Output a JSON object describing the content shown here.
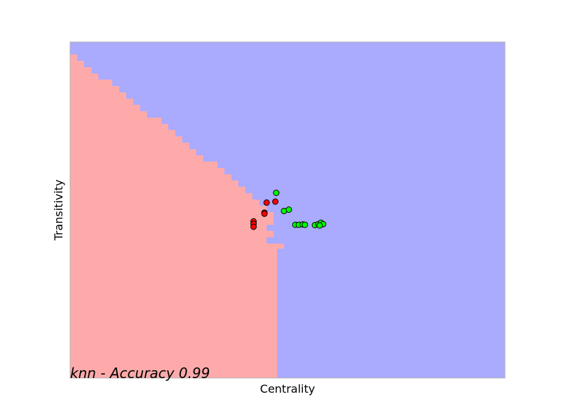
{
  "chart_data": {
    "type": "scatter",
    "title": "",
    "xlabel": "Centrality",
    "ylabel": "Transitivity",
    "xlim": [
      0,
      1
    ],
    "ylim": [
      0,
      1
    ],
    "x_ticks_visible": false,
    "y_ticks_visible": false,
    "grid": false,
    "annotation": "knn - Accuracy 0.99",
    "annotation_placement": "bottom-left",
    "background_regions": {
      "description_type": "decision-boundary",
      "colors": {
        "class_0": "#ffaaaa",
        "class_1": "#aaaaff"
      },
      "class_0_boundary_vertices": [
        [
          0.0,
          0.963
        ],
        [
          0.016,
          0.963
        ],
        [
          0.016,
          0.944
        ],
        [
          0.032,
          0.944
        ],
        [
          0.032,
          0.925
        ],
        [
          0.049,
          0.925
        ],
        [
          0.049,
          0.906
        ],
        [
          0.065,
          0.906
        ],
        [
          0.065,
          0.888
        ],
        [
          0.097,
          0.888
        ],
        [
          0.097,
          0.869
        ],
        [
          0.113,
          0.869
        ],
        [
          0.113,
          0.85
        ],
        [
          0.129,
          0.85
        ],
        [
          0.129,
          0.831
        ],
        [
          0.145,
          0.831
        ],
        [
          0.145,
          0.813
        ],
        [
          0.161,
          0.813
        ],
        [
          0.161,
          0.794
        ],
        [
          0.177,
          0.794
        ],
        [
          0.177,
          0.775
        ],
        [
          0.21,
          0.775
        ],
        [
          0.21,
          0.756
        ],
        [
          0.226,
          0.756
        ],
        [
          0.226,
          0.738
        ],
        [
          0.242,
          0.738
        ],
        [
          0.242,
          0.719
        ],
        [
          0.258,
          0.719
        ],
        [
          0.258,
          0.7
        ],
        [
          0.274,
          0.7
        ],
        [
          0.274,
          0.681
        ],
        [
          0.29,
          0.681
        ],
        [
          0.29,
          0.663
        ],
        [
          0.306,
          0.663
        ],
        [
          0.306,
          0.644
        ],
        [
          0.339,
          0.644
        ],
        [
          0.339,
          0.625
        ],
        [
          0.355,
          0.625
        ],
        [
          0.355,
          0.606
        ],
        [
          0.371,
          0.606
        ],
        [
          0.371,
          0.588
        ],
        [
          0.387,
          0.588
        ],
        [
          0.387,
          0.569
        ],
        [
          0.403,
          0.569
        ],
        [
          0.403,
          0.55
        ],
        [
          0.419,
          0.55
        ],
        [
          0.419,
          0.531
        ],
        [
          0.435,
          0.531
        ],
        [
          0.435,
          0.513
        ],
        [
          0.452,
          0.513
        ],
        [
          0.452,
          0.494
        ],
        [
          0.468,
          0.494
        ],
        [
          0.468,
          0.456
        ],
        [
          0.452,
          0.456
        ],
        [
          0.452,
          0.438
        ],
        [
          0.468,
          0.438
        ],
        [
          0.468,
          0.419
        ],
        [
          0.452,
          0.419
        ],
        [
          0.452,
          0.4
        ],
        [
          0.492,
          0.4
        ],
        [
          0.492,
          0.385
        ],
        [
          0.476,
          0.385
        ],
        [
          0.476,
          0.0
        ],
        [
          0.0,
          0.0
        ]
      ]
    },
    "series": [
      {
        "color": "#ff0000",
        "x": [
          0.422,
          0.422,
          0.422,
          0.447,
          0.447,
          0.452,
          0.472
        ],
        "y": [
          0.466,
          0.459,
          0.45,
          0.492,
          0.489,
          0.522,
          0.525
        ]
      },
      {
        "color": "#00ff00",
        "x": [
          0.474,
          0.492,
          0.503,
          0.518,
          0.526,
          0.535,
          0.54,
          0.563,
          0.571,
          0.577,
          0.582,
          0.574
        ],
        "y": [
          0.551,
          0.497,
          0.501,
          0.456,
          0.456,
          0.457,
          0.456,
          0.455,
          0.458,
          0.462,
          0.458,
          0.454
        ]
      }
    ]
  }
}
